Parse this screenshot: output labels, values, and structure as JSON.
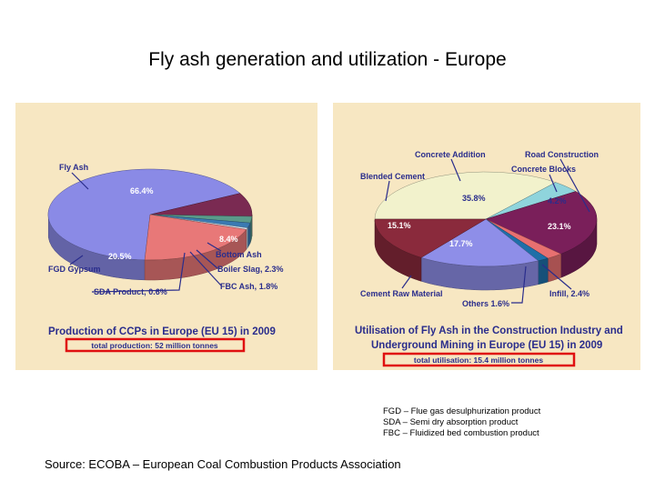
{
  "slide": {
    "title": "Fly ash generation and utilization - Europe",
    "source": "Source: ECOBA – European Coal Combustion Products Association",
    "abbreviations": [
      "FGD – Flue gas desulphurization product",
      "SDA – Semi dry absorption product",
      "FBC – Fluidized bed combustion product"
    ]
  },
  "chart_data": [
    {
      "type": "pie",
      "title": "Production of CCPs in Europe (EU 15) in 2009",
      "subtitle": "total production: 52 million tonnes",
      "slices": [
        {
          "label": "Fly Ash",
          "value": 66.4,
          "value_label": "66.4%",
          "color": "#8a8ae6"
        },
        {
          "label": "Bottom Ash",
          "value": 8.4,
          "value_label": "8.4%",
          "color": "#7a2a52"
        },
        {
          "label": "Boiler Slag,",
          "value": 2.3,
          "value_label": "2.3%",
          "color": "#5a9a8a"
        },
        {
          "label": "FBC Ash,",
          "value": 1.8,
          "value_label": "1.8%",
          "color": "#3a7ab2"
        },
        {
          "label": "SDA Product,",
          "value": 0.6,
          "value_label": "0.6%",
          "color": "#cfe3f0"
        },
        {
          "label": "FGD Gypsum",
          "value": 20.5,
          "value_label": "20.5%",
          "color": "#e87878"
        }
      ]
    },
    {
      "type": "pie",
      "title": "Utilisation of Fly Ash in the Construction Industry and Underground Mining in Europe (EU 15) in 2009",
      "title_lines": [
        "Utilisation of Fly Ash in the Construction Industry and",
        "Underground Mining  in Europe (EU 15) in 2009"
      ],
      "subtitle": "total utilisation: 15.4 million tonnes",
      "slices": [
        {
          "label": "Concrete Addition",
          "value": 35.8,
          "value_label": "35.8%",
          "color": "#f2f2cc"
        },
        {
          "label": "Concrete Blocks",
          "value": 4.2,
          "value_label": "4.2%",
          "color": "#8fd4dc"
        },
        {
          "label": "Road Construction",
          "value": 23.1,
          "value_label": "23.1%",
          "color": "#7a1f5a"
        },
        {
          "label": "Infill,",
          "value": 2.4,
          "value_label": "2.4%",
          "color": "#e87070"
        },
        {
          "label": "Others",
          "value": 1.6,
          "value_label": "1.6%",
          "color": "#1f6fa8"
        },
        {
          "label": "Cement Raw Material",
          "value": 17.7,
          "value_label": "17.7%",
          "color": "#8e8ee8"
        },
        {
          "label": "Blended Cement",
          "value": 15.1,
          "value_label": "15.1%",
          "color": "#8a2a3c"
        }
      ]
    }
  ]
}
